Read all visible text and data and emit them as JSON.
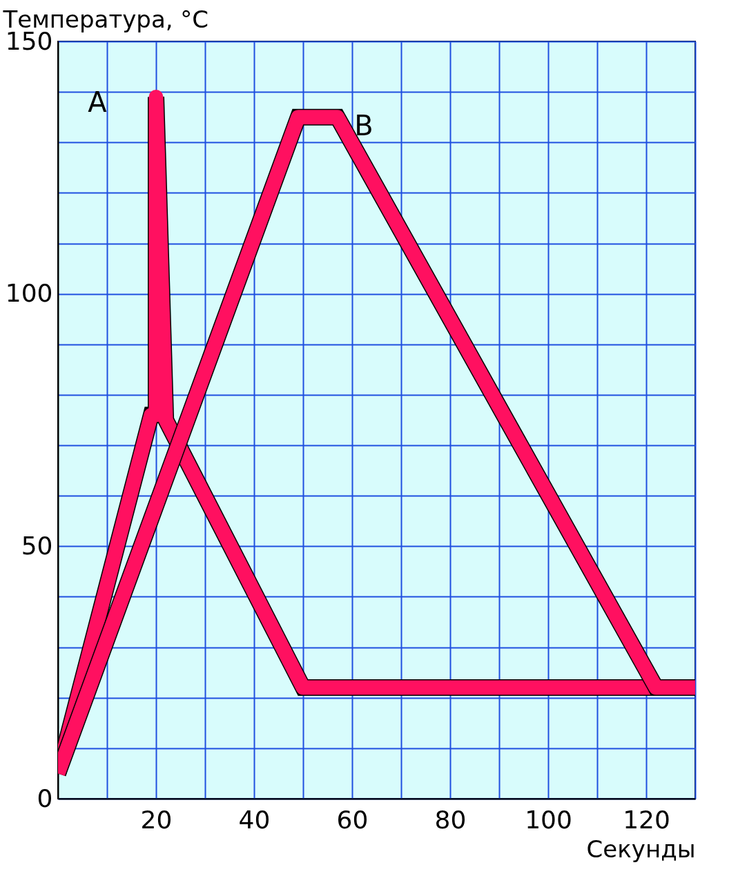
{
  "chart_data": {
    "type": "line",
    "xlabel": "Секунды",
    "ylabel": "Температура, °C",
    "xlim": [
      0,
      130
    ],
    "ylim": [
      0,
      150
    ],
    "xticks": [
      {
        "value": 10,
        "label": null
      },
      20,
      {
        "value": 30,
        "label": null
      },
      40,
      {
        "value": 50,
        "label": null
      },
      60,
      {
        "value": 70,
        "label": null
      },
      80,
      {
        "value": 90,
        "label": null
      },
      100,
      {
        "value": 110,
        "label": null
      },
      120,
      {
        "value": 130,
        "label": null
      }
    ],
    "yticks": [
      0,
      {
        "value": 10,
        "label": null
      },
      {
        "value": 20,
        "label": null
      },
      {
        "value": 30,
        "label": null
      },
      {
        "value": 40,
        "label": null
      },
      50,
      {
        "value": 60,
        "label": null
      },
      {
        "value": 70,
        "label": null
      },
      {
        "value": 80,
        "label": null
      },
      {
        "value": 90,
        "label": null
      },
      100,
      {
        "value": 110,
        "label": null
      },
      {
        "value": 120,
        "label": null
      },
      {
        "value": 130,
        "label": null
      },
      {
        "value": 140,
        "label": null
      },
      150
    ],
    "grid": true,
    "marker": "none",
    "line_style": "solid",
    "series": [
      {
        "name": "A",
        "color": "#ff1060",
        "x": [
          0,
          19,
          20,
          20,
          22,
          50,
          130
        ],
        "values": [
          5,
          76,
          76,
          139,
          75,
          22,
          22
        ]
      },
      {
        "name": "B",
        "color": "#ff1060",
        "x": [
          0,
          49,
          57,
          122,
          130
        ],
        "values": [
          5,
          135,
          135,
          22,
          22
        ]
      }
    ]
  }
}
